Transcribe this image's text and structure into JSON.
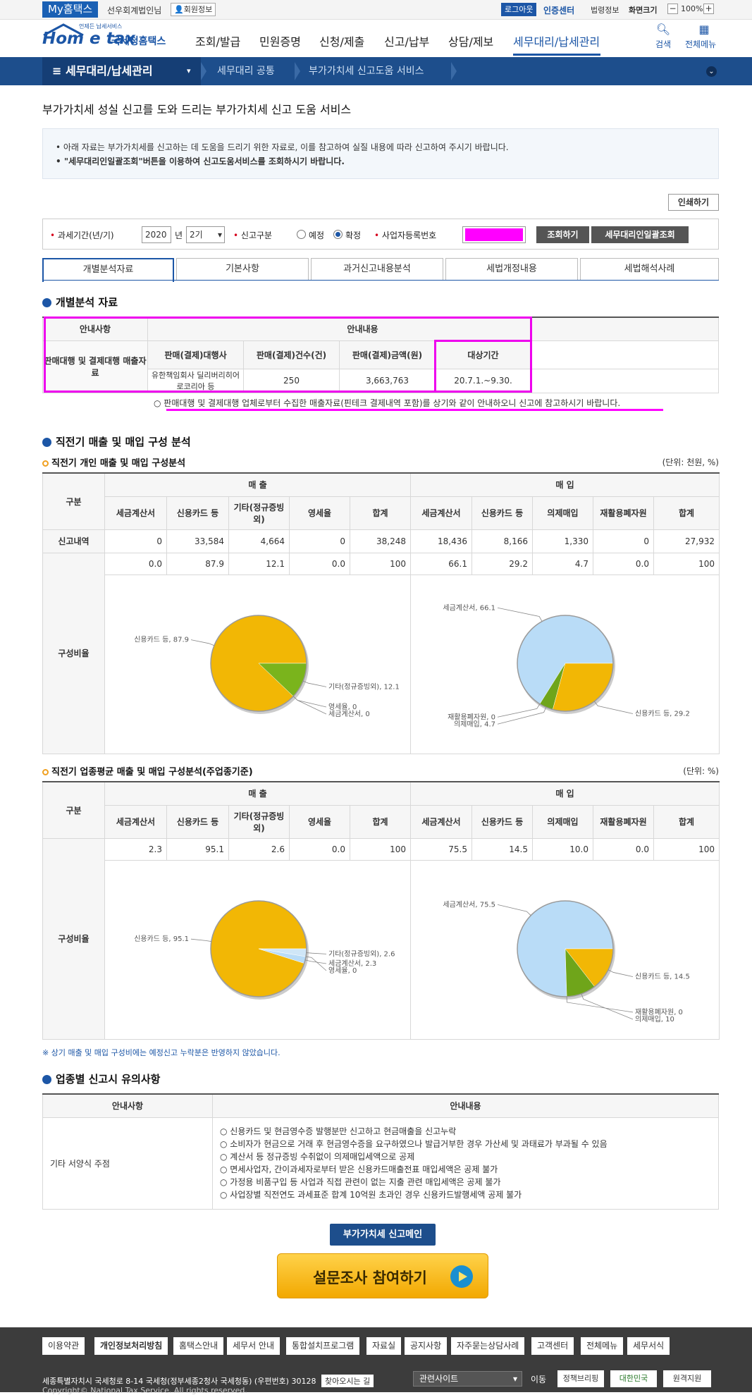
{
  "top": {
    "mytax": "My홈택스",
    "user": "선우회계법인님",
    "member": "회원정보",
    "logout": "로그아웃",
    "cert": "인증센터",
    "law": "법령정보",
    "screen": "화면크기",
    "zoom": "100%",
    "minus": "−",
    "plus": "+"
  },
  "header": {
    "logo_en": "Hom e tax",
    "logo_ko": "국세청홈택스",
    "logo_small": "언제든 납세서비스",
    "menu": [
      "조회/발급",
      "민원증명",
      "신청/제출",
      "신고/납부",
      "상담/제보",
      "세무대리/납세관리"
    ],
    "search": "검색",
    "allmenu": "전체메뉴"
  },
  "nav": {
    "section": "≡ 세무대리/납세관리",
    "section_arrow": "▾",
    "crumbs": [
      "세무대리 공통",
      "부가가치세 신고도움 서비스"
    ]
  },
  "page": {
    "title": "부가가치세 성실 신고를 도와 드리는 부가가치세 신고 도움 서비스",
    "notice": [
      "• 아래 자료는 부가가치세를 신고하는 데 도움을 드리기 위한 자료로, 이를 참고하여 실질 내용에 따라 신고하여 주시기 바랍니다.",
      "• \"세무대리인일괄조회\"버튼을 이용하여 신고도움서비스를 조회하시기 바랍니다."
    ],
    "print": "인쇄하기"
  },
  "search": {
    "period_label": "과세기간(년/기)",
    "year": "2020",
    "year_unit": "년",
    "term": "2기",
    "kind_label": "신고구분",
    "opt1": "예정",
    "opt2": "확정",
    "biz_label": "사업자등록번호",
    "query": "조회하기",
    "bulk": "세무대리인일괄조회"
  },
  "tabs": [
    "개별분석자료",
    "기본사항",
    "과거신고내용분석",
    "세법개정내용",
    "세법해석사례"
  ],
  "s1": {
    "title": "개별분석 자료",
    "h1": "안내사항",
    "h2": "안내내용",
    "row_label": "판매대행 및 결제대행 매출자료",
    "cols": [
      "판매(결제)대행사",
      "판매(결제)건수(건)",
      "판매(결제)금액(원)",
      "대상기간"
    ],
    "vals": [
      "유한책임회사 딜리버리히어로코리아 등",
      "250",
      "3,663,763",
      "20.7.1.~9.30."
    ],
    "note": "○ 판매대행 및 결제대행 업체로부터 수집한 매출자료(핀테크 결제내역 포함)를 상기와 같이 안내하오니 신고에 참고하시기 바랍니다."
  },
  "s2": {
    "title": "직전기 매출 및 매입 구성 분석",
    "sub1": "직전기 개인 매출 및 매입 구성분석",
    "unit1": "(단위: 천원, %)",
    "sub2": "직전기 업종평균 매출 및 매입 구성분석(주업종기준)",
    "unit2": "(단위: %)",
    "gubun": "구분",
    "sales": "매 출",
    "purch": "매 입",
    "sales_cols": [
      "세금계산서",
      "신용카드 등",
      "기타(정규증빙 외)",
      "영세율",
      "합계"
    ],
    "purch_cols": [
      "세금계산서",
      "신용카드 등",
      "의제매입",
      "재활용폐자원",
      "합계"
    ],
    "row_report": "신고내역",
    "row_ratio": "구성비율",
    "t1_amount": [
      "0",
      "33,584",
      "4,664",
      "0",
      "38,248",
      "18,436",
      "8,166",
      "1,330",
      "0",
      "27,932"
    ],
    "t1_ratio": [
      "0.0",
      "87.9",
      "12.1",
      "0.0",
      "100",
      "66.1",
      "29.2",
      "4.7",
      "0.0",
      "100"
    ],
    "t2_ratio": [
      "2.3",
      "95.1",
      "2.6",
      "0.0",
      "100",
      "75.5",
      "14.5",
      "10.0",
      "0.0",
      "100"
    ],
    "note": "※ 상기 매출 및 매입 구성비에는 예정신고 누락분은 반영하지 않았습니다."
  },
  "chart_data": [
    {
      "type": "pie",
      "labels": [
        "신용카드 등",
        "영세율",
        "세금계산서",
        "기타(정규증빙외)"
      ],
      "values": [
        87.9,
        0,
        0,
        12.1
      ],
      "colors": [
        "#f2b705",
        "#6fa51a",
        "#6fa51a",
        "#7ab41c"
      ]
    },
    {
      "type": "pie",
      "labels": [
        "세금계산서",
        "재활용폐자원",
        "의제매입",
        "신용카드 등"
      ],
      "values": [
        66.1,
        0,
        4.7,
        29.2
      ],
      "colors": [
        "#b9dcf7",
        "#6fa51a",
        "#6fa51a",
        "#f2b705"
      ]
    },
    {
      "type": "pie",
      "labels": [
        "신용카드 등",
        "세금계산서",
        "영세율",
        "기타(정규증빙외)"
      ],
      "values": [
        95.1,
        2.3,
        0,
        2.6
      ],
      "colors": [
        "#f2b705",
        "#b9dcf7",
        "#6fa51a",
        "#cfe6f7"
      ]
    },
    {
      "type": "pie",
      "labels": [
        "세금계산서",
        "재활용폐자원",
        "의제매입",
        "신용카드 등"
      ],
      "values": [
        75.5,
        0,
        10,
        14.5
      ],
      "colors": [
        "#b9dcf7",
        "#6fa51a",
        "#6fa51a",
        "#f2b705"
      ]
    }
  ],
  "s3": {
    "title": "업종별 신고시 유의사항",
    "h1": "안내사항",
    "h2": "안내내용",
    "row": "기타 서양식 주점",
    "items": [
      "○ 신용카드 및 현금영수증 발행분만 신고하고 현금매출을 신고누락",
      "○ 소비자가 현금으로 거래 후 현금영수증을 요구하였으나 발급거부한 경우 가산세 및 과태료가 부과될 수 있음",
      "○ 계산서 등 정규증빙 수취없이 의제매입세액으로 공제",
      "○ 면세사업자, 간이과세자로부터 받은 신용카드매출전표 매입세액은 공제 불가",
      "○ 가정용 비품구입 등 사업과 직접 관련이 없는 지출 관련 매입세액은 공제 불가",
      "○ 사업장별 직전연도 과세표준 합계 10억원 초과인 경우 신용카드발행세액 공제 불가"
    ]
  },
  "bottom": {
    "vatmain": "부가가치세 신고메인",
    "survey": "설문조사 참여하기"
  },
  "footer": {
    "links": [
      "이용약관",
      "개인정보처리방침",
      "홈택스안내",
      "세무서 안내",
      "통합설치프로그램",
      "자료실",
      "공지사항",
      "자주묻는상담사례",
      "고객센터",
      "전체메뉴",
      "세무서식"
    ],
    "addr": "세종특별자치시 국세청로 8-14 국세청(정부세종2청사 국세청동) (우편번호) 30128",
    "find": "찾아오시는 길",
    "related": "관련사이트",
    "go": "이동",
    "b1": "정책브리핑",
    "b2": "대한민국",
    "b3": "원격지원",
    "copy": "Copyright© National Tax Service. All rights reserved."
  }
}
